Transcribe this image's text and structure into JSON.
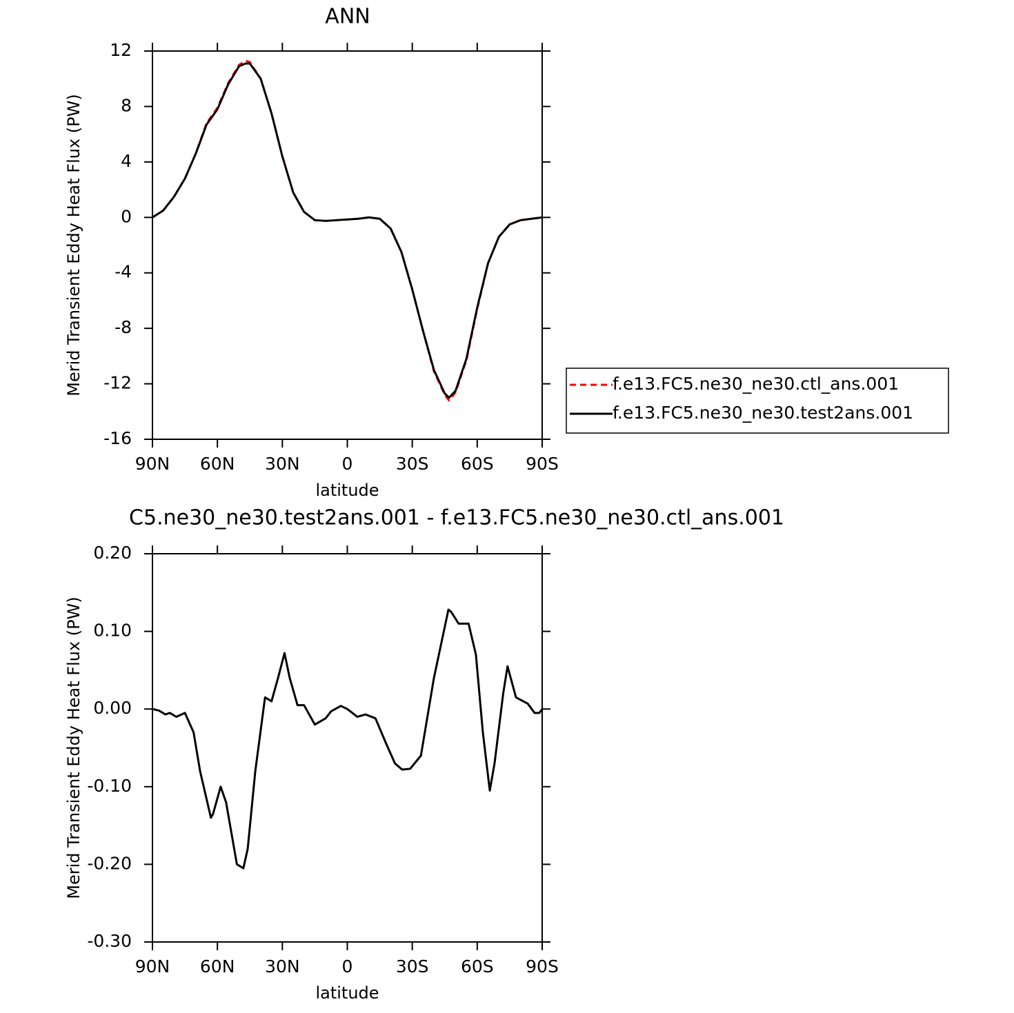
{
  "chart_data": [
    {
      "type": "line",
      "title": "ANN",
      "xlabel": "latitude",
      "ylabel": "Merid Transient Eddy Heat Flux (PW)",
      "x": [
        90,
        85,
        80,
        75,
        70,
        65,
        60,
        55,
        50,
        47,
        45,
        40,
        35,
        30,
        25,
        20,
        15,
        10,
        5,
        0,
        -5,
        -10,
        -15,
        -20,
        -25,
        -30,
        -35,
        -40,
        -45,
        -47,
        -50,
        -55,
        -60,
        -65,
        -70,
        -75,
        -80,
        -85,
        -90
      ],
      "series": [
        {
          "name": "f.e13.FC5.ne30_ne30.ctl_ans.001",
          "color": "#ff0000",
          "style": "dashed",
          "values": [
            0,
            0.5,
            1.5,
            2.8,
            4.6,
            6.8,
            7.9,
            9.7,
            11.0,
            11.3,
            11.2,
            10.0,
            7.5,
            4.4,
            1.8,
            0.4,
            -0.2,
            -0.25,
            -0.2,
            -0.15,
            -0.1,
            0.0,
            -0.1,
            -0.8,
            -2.5,
            -5.2,
            -8.2,
            -11.1,
            -12.8,
            -13.2,
            -12.6,
            -10.3,
            -6.6,
            -3.3,
            -1.4,
            -0.5,
            -0.2,
            -0.1,
            0
          ]
        },
        {
          "name": "f.e13.FC5.ne30_ne30.test2ans.001",
          "color": "#000000",
          "style": "solid",
          "values": [
            0,
            0.5,
            1.5,
            2.8,
            4.6,
            6.7,
            7.8,
            9.6,
            10.9,
            11.1,
            11.1,
            10.0,
            7.5,
            4.4,
            1.8,
            0.4,
            -0.2,
            -0.25,
            -0.2,
            -0.15,
            -0.1,
            0.0,
            -0.1,
            -0.8,
            -2.5,
            -5.2,
            -8.2,
            -11.0,
            -12.7,
            -13.0,
            -12.5,
            -10.2,
            -6.5,
            -3.3,
            -1.4,
            -0.5,
            -0.2,
            -0.1,
            0
          ]
        }
      ],
      "xlim": [
        90,
        -90
      ],
      "xticks": [
        {
          "value": 90,
          "label": "90N"
        },
        {
          "value": 60,
          "label": "60N"
        },
        {
          "value": 30,
          "label": "30N"
        },
        0,
        {
          "value": -30,
          "label": "30S"
        },
        {
          "value": -60,
          "label": "60S"
        },
        {
          "value": -90,
          "label": "90S"
        }
      ],
      "ylim": [
        -16,
        12
      ],
      "yticks": [
        -16,
        -12,
        -8,
        -4,
        0,
        4,
        8,
        12
      ],
      "legend": "right"
    },
    {
      "type": "line",
      "title": "C5.ne30_ne30.test2ans.001 - f.e13.FC5.ne30_ne30.ctl_ans.001",
      "xlabel": "latitude",
      "ylabel": "Merid Transient Eddy Heat Flux (PW)",
      "x": [
        90,
        87,
        84,
        82,
        79,
        75,
        71,
        68,
        63,
        62,
        58.5,
        56,
        51,
        48,
        46,
        42.5,
        38,
        35,
        32,
        29,
        26.6,
        23,
        20,
        15,
        10,
        7.5,
        3,
        0,
        -4.6,
        -8.4,
        -13,
        -18,
        -22,
        -25.3,
        -29,
        -34,
        -40,
        -46.7,
        -48,
        -51.4,
        -56,
        -59.4,
        -62.6,
        -65.8,
        -68,
        -72,
        -74,
        -77.9,
        -83.3,
        -86.5,
        -88.7,
        -90
      ],
      "series": [
        {
          "color": "#000000",
          "style": "solid",
          "values": [
            0,
            -0.002,
            -0.007,
            -0.005,
            -0.01,
            -0.005,
            -0.03,
            -0.08,
            -0.14,
            -0.135,
            -0.1,
            -0.12,
            -0.2,
            -0.205,
            -0.18,
            -0.08,
            0.015,
            0.01,
            0.04,
            0.072,
            0.04,
            0.005,
            0.005,
            -0.02,
            -0.012,
            -0.003,
            0.004,
            0.0,
            -0.01,
            -0.007,
            -0.012,
            -0.045,
            -0.07,
            -0.078,
            -0.077,
            -0.06,
            0.04,
            0.128,
            0.125,
            0.11,
            0.11,
            0.07,
            -0.03,
            -0.105,
            -0.07,
            0.02,
            0.055,
            0.015,
            0.007,
            -0.005,
            -0.005,
            0
          ]
        }
      ],
      "xlim": [
        90,
        -90
      ],
      "xticks": [
        {
          "value": 90,
          "label": "90N"
        },
        {
          "value": 60,
          "label": "60N"
        },
        {
          "value": 30,
          "label": "30N"
        },
        0,
        {
          "value": -30,
          "label": "30S"
        },
        {
          "value": -60,
          "label": "60S"
        },
        {
          "value": -90,
          "label": "90S"
        }
      ],
      "ylim": [
        -0.3,
        0.2
      ],
      "yticks": [
        {
          "value": -0.3,
          "label": "-0.30"
        },
        {
          "value": -0.2,
          "label": "-0.20"
        },
        {
          "value": -0.1,
          "label": "-0.10"
        },
        {
          "value": 0,
          "label": "0.00"
        },
        {
          "value": 0.1,
          "label": "0.10"
        },
        {
          "value": 0.2,
          "label": "0.20"
        }
      ]
    }
  ]
}
